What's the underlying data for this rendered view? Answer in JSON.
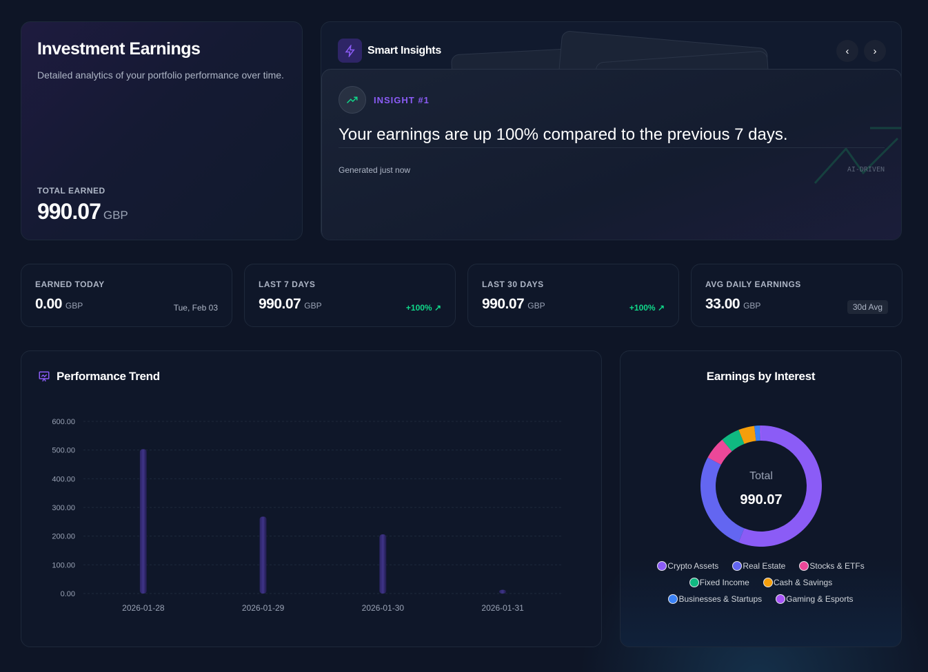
{
  "hero": {
    "title": "Investment Earnings",
    "subtitle": "Detailed analytics of your portfolio performance over time.",
    "total_label": "TOTAL EARNED",
    "total_value": "990.07",
    "currency": "GBP"
  },
  "insights": {
    "title": "Smart Insights",
    "icon": "bolt-icon",
    "prev": "‹",
    "next": "›",
    "badge": "INSIGHT #1",
    "text": "Your earnings are up 100% compared to the previous 7 days.",
    "generated": "Generated just now",
    "tag": "AI-DRIVEN"
  },
  "stats": [
    {
      "label": "EARNED TODAY",
      "value": "0.00",
      "currency": "GBP",
      "aside": "Tue, Feb 03"
    },
    {
      "label": "LAST 7 DAYS",
      "value": "990.07",
      "currency": "GBP",
      "aside": "+100% ↗"
    },
    {
      "label": "LAST 30 DAYS",
      "value": "990.07",
      "currency": "GBP",
      "aside": "+100% ↗"
    },
    {
      "label": "AVG DAILY EARNINGS",
      "value": "33.00",
      "currency": "GBP",
      "aside": "30d Avg"
    }
  ],
  "colors": {
    "accent": "#8b5cf6",
    "positive": "#10d98a",
    "bar": "#3b2f7a"
  },
  "chart_data": [
    {
      "type": "bar",
      "title": "Performance Trend",
      "categories": [
        "2026-01-28",
        "2026-01-29",
        "2026-01-30",
        "2026-01-31"
      ],
      "values": [
        503,
        268,
        206,
        13
      ],
      "ylim": [
        0,
        600
      ],
      "yticks": [
        "0.00",
        "100.00",
        "200.00",
        "300.00",
        "400.00",
        "500.00",
        "600.00"
      ],
      "grid": true
    },
    {
      "type": "pie",
      "title": "Earnings by Interest",
      "center_label": "Total",
      "center_value": "990.07",
      "legend": "bottom",
      "labels": [
        "Crypto Assets",
        "Real Estate",
        "Stocks & ETFs",
        "Fixed Income",
        "Cash & Savings",
        "Businesses & Startups",
        "Gaming & Esports"
      ],
      "values": [
        555,
        265,
        60,
        50,
        42,
        15,
        3
      ],
      "colors": [
        "#8b5cf6",
        "#6366f1",
        "#ec4899",
        "#10b981",
        "#f59e0b",
        "#3b82f6",
        "#a855f7"
      ]
    }
  ]
}
